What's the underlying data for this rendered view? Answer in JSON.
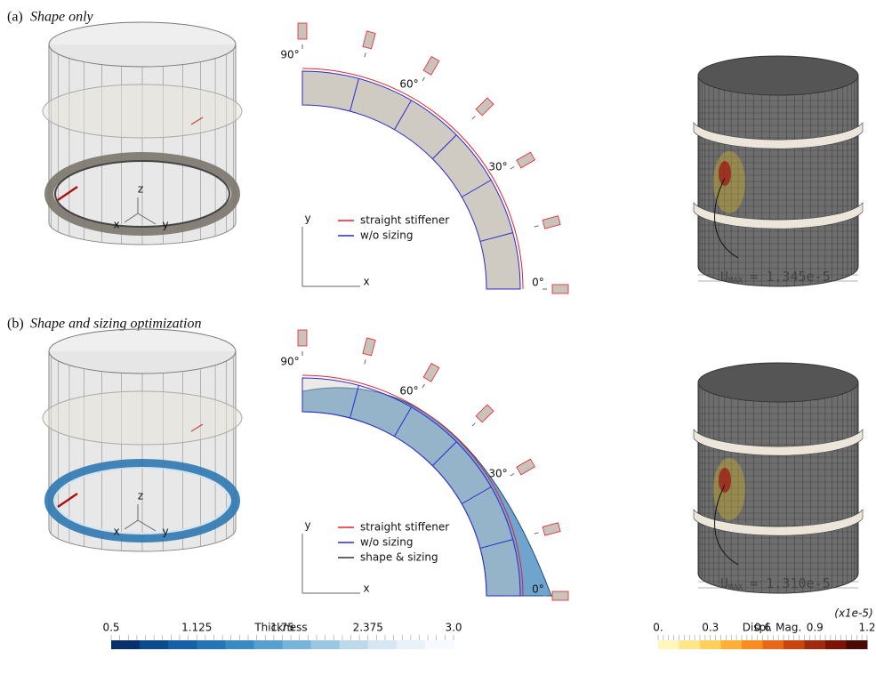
{
  "panels": [
    {
      "label": "(a)",
      "title": "Shape only",
      "axes3d": [
        "z",
        "x",
        "y"
      ],
      "angles": [
        "90°",
        "60°",
        "30°",
        "0°"
      ],
      "plot_axes": [
        "y",
        "x"
      ],
      "legend": [
        "straight stiffener",
        "w/o sizing"
      ],
      "umax": {
        "symbol": "U",
        "subscript": "MAX",
        "text": "= 1.345e-5"
      }
    },
    {
      "label": "(b)",
      "title": "Shape and sizing optimization",
      "axes3d": [
        "z",
        "x",
        "y"
      ],
      "angles": [
        "90°",
        "60°",
        "30°",
        "0°"
      ],
      "plot_axes": [
        "y",
        "x"
      ],
      "legend": [
        "straight stiffener",
        "w/o sizing",
        "shape & sizing"
      ],
      "umax": {
        "symbol": "U",
        "subscript": "MAX",
        "text": "= 1.310e-5"
      }
    }
  ],
  "colorbars": [
    {
      "title": "Thickness",
      "ticks": [
        "0.5",
        "1.125",
        "1.75",
        "2.375",
        "3.0"
      ]
    },
    {
      "title": "Displ. Mag.",
      "multiplier": "(x1e-5)",
      "ticks": [
        "0.",
        "0.3",
        "0.6",
        "0.9",
        "1.2"
      ]
    }
  ]
}
